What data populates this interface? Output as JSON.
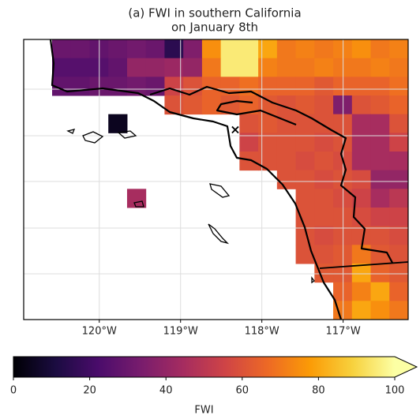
{
  "chart_data": {
    "type": "heatmap",
    "title_lines": [
      "(a) FWI in southern California",
      "on January 8th"
    ],
    "xlim": [
      -120.93,
      -116.2
    ],
    "xticks": [
      {
        "value": -120,
        "label": "120°W"
      },
      {
        "value": -119,
        "label": "119°W"
      },
      {
        "value": -118,
        "label": "118°W"
      },
      {
        "value": -117,
        "label": "117°W"
      }
    ],
    "values": [
      [
        30,
        30,
        28,
        30,
        32,
        30,
        15,
        35,
        75,
        95,
        95,
        80,
        70,
        72,
        70,
        72,
        75,
        70,
        72
      ],
      [
        25,
        25,
        25,
        28,
        40,
        40,
        42,
        40,
        70,
        95,
        95,
        72,
        70,
        70,
        72,
        70,
        70,
        72,
        70
      ],
      [
        28,
        28,
        30,
        30,
        32,
        30,
        55,
        60,
        65,
        65,
        68,
        65,
        65,
        65,
        62,
        65,
        65,
        65,
        68
      ],
      [
        null,
        null,
        null,
        null,
        null,
        null,
        60,
        62,
        65,
        62,
        65,
        62,
        60,
        62,
        60,
        35,
        60,
        62,
        65
      ],
      [
        null,
        null,
        null,
        5,
        null,
        null,
        null,
        null,
        null,
        null,
        60,
        62,
        60,
        60,
        60,
        60,
        45,
        45,
        60
      ],
      [
        null,
        null,
        null,
        null,
        null,
        null,
        null,
        null,
        null,
        null,
        55,
        60,
        60,
        60,
        58,
        60,
        45,
        45,
        55
      ],
      [
        null,
        null,
        null,
        null,
        null,
        null,
        null,
        null,
        null,
        null,
        60,
        60,
        60,
        58,
        60,
        58,
        45,
        45,
        45
      ],
      [
        null,
        null,
        null,
        null,
        null,
        null,
        null,
        null,
        null,
        null,
        null,
        null,
        60,
        60,
        58,
        60,
        58,
        40,
        40
      ],
      [
        null,
        null,
        null,
        null,
        45,
        null,
        null,
        null,
        null,
        null,
        null,
        null,
        null,
        60,
        60,
        58,
        55,
        45,
        50
      ],
      [
        null,
        null,
        null,
        null,
        null,
        null,
        null,
        null,
        null,
        null,
        null,
        null,
        null,
        60,
        60,
        60,
        58,
        55,
        55
      ],
      [
        null,
        null,
        null,
        null,
        null,
        null,
        null,
        null,
        null,
        null,
        null,
        null,
        null,
        60,
        58,
        60,
        60,
        60,
        58
      ],
      [
        null,
        null,
        null,
        null,
        null,
        null,
        null,
        null,
        null,
        null,
        null,
        null,
        null,
        60,
        60,
        62,
        70,
        62,
        60
      ],
      [
        null,
        null,
        null,
        null,
        null,
        null,
        null,
        null,
        null,
        null,
        null,
        null,
        null,
        null,
        62,
        62,
        80,
        65,
        62
      ],
      [
        null,
        null,
        null,
        null,
        null,
        null,
        null,
        null,
        null,
        null,
        null,
        null,
        null,
        null,
        null,
        65,
        72,
        80,
        65
      ],
      [
        null,
        null,
        null,
        null,
        null,
        null,
        null,
        null,
        null,
        null,
        null,
        null,
        null,
        null,
        null,
        70,
        80,
        75,
        70
      ]
    ],
    "colormap": [
      "#000004",
      "#1b0c41",
      "#4a0c6b",
      "#781c6d",
      "#a52c60",
      "#cf4446",
      "#ed6925",
      "#fb9b06",
      "#f7d13d",
      "#fcffa4"
    ],
    "clim": [
      0,
      100
    ],
    "colorbar_ticks": [
      0,
      20,
      40,
      60,
      80,
      100
    ],
    "colorbar_label": "FWI"
  }
}
